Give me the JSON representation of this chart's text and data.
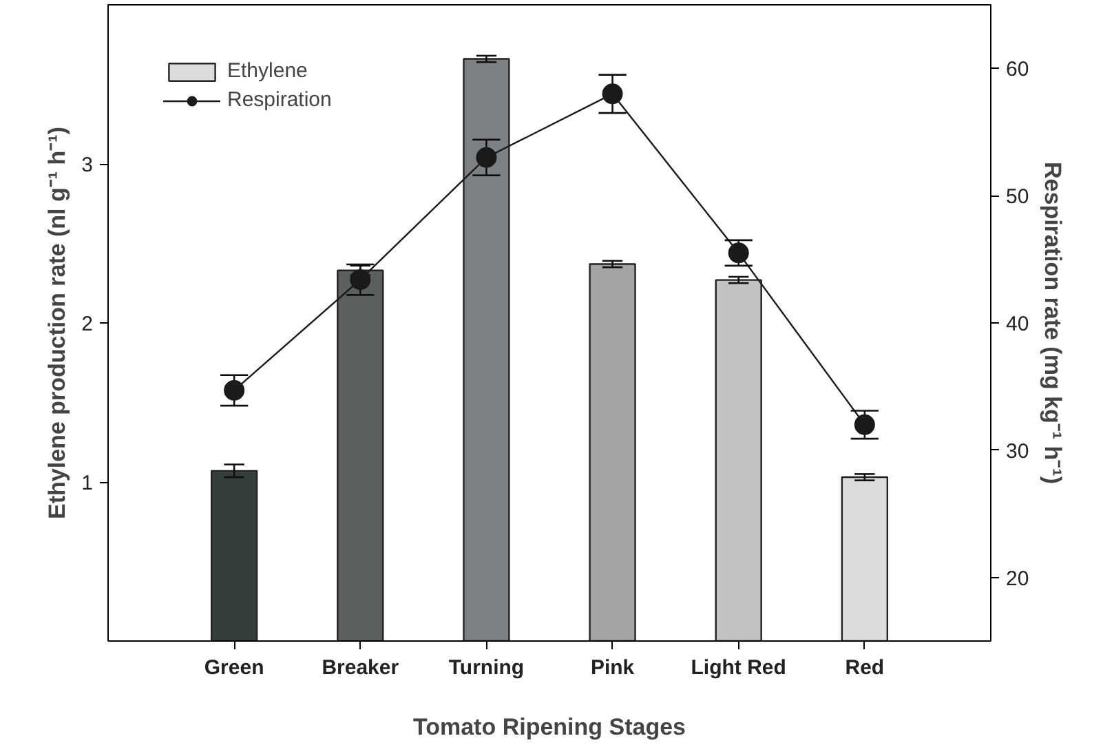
{
  "chart_data": {
    "type": "bar",
    "categories": [
      "Green",
      "Breaker",
      "Turning",
      "Pink",
      "Light Red",
      "Red"
    ],
    "xlabel": "Tomato Ripening Stages",
    "ylabel": "Ethylene production rate (nl g⁻¹ h⁻¹)",
    "y2label": "Respiration rate (mg kg⁻¹ h⁻¹)",
    "ylim": [
      0,
      4
    ],
    "yticks": [
      1,
      2,
      3
    ],
    "y2lim": [
      15,
      65
    ],
    "y2ticks": [
      20,
      30,
      40,
      50,
      60
    ],
    "grid": false,
    "legend": "top left",
    "series": [
      {
        "name": "Ethylene",
        "colors": [
          "#363e3b",
          "#5b605f",
          "#7e8184",
          "#a2a3a5",
          "#c1c2c4",
          "#dcdcdc"
        ],
        "values": [
          1.07,
          2.33,
          3.66,
          2.37,
          2.27,
          1.03
        ],
        "errors": [
          0.04,
          0.03,
          0.02,
          0.02,
          0.02,
          0.02
        ]
      },
      {
        "name": "Respiration",
        "type": "line",
        "axis": "y2",
        "color": "#1a1a1a",
        "marker": "circle",
        "values": [
          34.7,
          43.4,
          53.0,
          58.0,
          45.5,
          32.0
        ],
        "errors": [
          1.2,
          1.2,
          1.4,
          1.5,
          1.0,
          1.1
        ]
      }
    ]
  }
}
